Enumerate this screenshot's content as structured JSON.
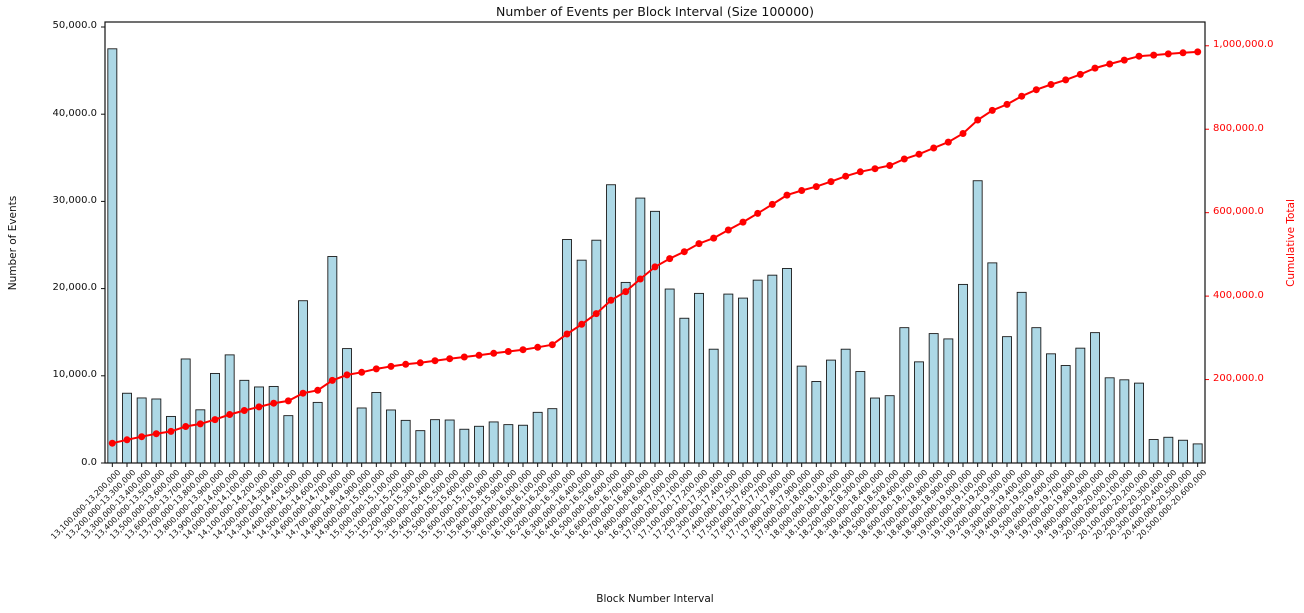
{
  "chart_data": {
    "type": "bar",
    "combo": "bar with cumulative line overlay",
    "title": "Number of Events per Block Interval (Size 100000)",
    "xlabel": "Block Number Interval",
    "ylabel_left": "Number of Events",
    "ylabel_right": "Cumulative Total",
    "legend_position": "none",
    "grid": false,
    "categories": [
      "13,100,000-13,200,000",
      "13,200,000-13,300,000",
      "13,300,000-13,400,000",
      "13,400,000-13,500,000",
      "13,500,000-13,600,000",
      "13,600,000-13,700,000",
      "13,700,000-13,800,000",
      "13,800,000-13,900,000",
      "13,900,000-14,000,000",
      "14,000,000-14,100,000",
      "14,100,000-14,200,000",
      "14,200,000-14,300,000",
      "14,300,000-14,400,000",
      "14,400,000-14,500,000",
      "14,500,000-14,600,000",
      "14,600,000-14,700,000",
      "14,700,000-14,800,000",
      "14,800,000-14,900,000",
      "14,900,000-15,000,000",
      "15,000,000-15,100,000",
      "15,100,000-15,200,000",
      "15,200,000-15,300,000",
      "15,300,000-15,400,000",
      "15,400,000-15,500,000",
      "15,500,000-15,600,000",
      "15,600,000-15,700,000",
      "15,700,000-15,800,000",
      "15,800,000-15,900,000",
      "15,900,000-16,000,000",
      "16,000,000-16,100,000",
      "16,100,000-16,200,000",
      "16,200,000-16,300,000",
      "16,300,000-16,400,000",
      "16,400,000-16,500,000",
      "16,500,000-16,600,000",
      "16,600,000-16,700,000",
      "16,700,000-16,800,000",
      "16,800,000-16,900,000",
      "16,900,000-17,000,000",
      "17,000,000-17,100,000",
      "17,100,000-17,200,000",
      "17,200,000-17,300,000",
      "17,300,000-17,400,000",
      "17,400,000-17,500,000",
      "17,500,000-17,600,000",
      "17,600,000-17,700,000",
      "17,700,000-17,800,000",
      "17,800,000-17,900,000",
      "17,900,000-18,000,000",
      "18,000,000-18,100,000",
      "18,100,000-18,200,000",
      "18,200,000-18,300,000",
      "18,300,000-18,400,000",
      "18,400,000-18,500,000",
      "18,500,000-18,600,000",
      "18,600,000-18,700,000",
      "18,700,000-18,800,000",
      "18,800,000-18,900,000",
      "18,900,000-19,000,000",
      "19,000,000-19,100,000",
      "19,100,000-19,200,000",
      "19,200,000-19,300,000",
      "19,300,000-19,400,000",
      "19,400,000-19,500,000",
      "19,500,000-19,600,000",
      "19,600,000-19,700,000",
      "19,700,000-19,800,000",
      "19,800,000-19,900,000",
      "19,900,000-20,000,000",
      "20,000,000-20,100,000",
      "20,100,000-20,200,000",
      "20,200,000-20,300,000",
      "20,300,000-20,400,000",
      "20,400,000-20,500,000",
      "20,500,000-20,600,000"
    ],
    "series": [
      {
        "name": "Number of Events",
        "type": "bar",
        "color": "#add8e6",
        "edge_color": "#1a1a1a",
        "values": [
          47500,
          8000,
          7460,
          7340,
          5340,
          11930,
          6100,
          10270,
          12400,
          9480,
          8720,
          8780,
          5430,
          18610,
          6950,
          23680,
          13120,
          6310,
          8090,
          6080,
          4890,
          3710,
          4970,
          4930,
          3870,
          4210,
          4710,
          4400,
          4330,
          5810,
          6230,
          25630,
          23260,
          25550,
          31910,
          20710,
          30380,
          28860,
          19950,
          16600,
          19450,
          13050,
          19370,
          18910,
          20970,
          21540,
          22310,
          11110,
          9350,
          11800,
          13050,
          10490,
          7450,
          7720,
          15520,
          11600,
          14840,
          14230,
          20480,
          32370,
          22950,
          14490,
          19570,
          15520,
          12520,
          11180,
          13170,
          14950,
          9770,
          9540,
          9160,
          2690,
          2950,
          2610,
          2190
        ]
      },
      {
        "name": "Cumulative Total",
        "type": "line",
        "color": "#ff0000",
        "marker": "circle",
        "values": [
          47500,
          55500,
          62960,
          70300,
          75640,
          87570,
          93670,
          103940,
          116340,
          125820,
          134540,
          143320,
          148750,
          167360,
          174310,
          197990,
          211110,
          217420,
          225510,
          231590,
          236480,
          240190,
          245160,
          250090,
          253960,
          258170,
          262880,
          267280,
          271610,
          277420,
          283650,
          309280,
          332540,
          358090,
          390000,
          410710,
          441090,
          469950,
          489900,
          506500,
          525950,
          539000,
          558370,
          577280,
          598250,
          619790,
          642100,
          653210,
          662560,
          674360,
          687410,
          697900,
          705350,
          713070,
          728590,
          740190,
          755030,
          769260,
          789740,
          822110,
          845060,
          859550,
          879120,
          894640,
          907160,
          918340,
          931510,
          946460,
          956230,
          965770,
          974930,
          977620,
          980570,
          983180,
          985370
        ]
      }
    ],
    "axes": {
      "left": {
        "ticks": [
          0,
          10000,
          20000,
          30000,
          40000,
          50000
        ],
        "tick_labels": [
          "0.0",
          "10,000.0",
          "20,000.0",
          "30,000.0",
          "40,000.0",
          "50,000.0"
        ],
        "max": 50573,
        "color": "#111111"
      },
      "right": {
        "ticks": [
          200000,
          400000,
          600000,
          800000,
          1000000
        ],
        "tick_labels": [
          "200,000.0",
          "400,000.0",
          "600,000.0",
          "800,000.0",
          "1,000,000.0"
        ],
        "max": 1057000,
        "color": "#ff0000"
      }
    }
  }
}
